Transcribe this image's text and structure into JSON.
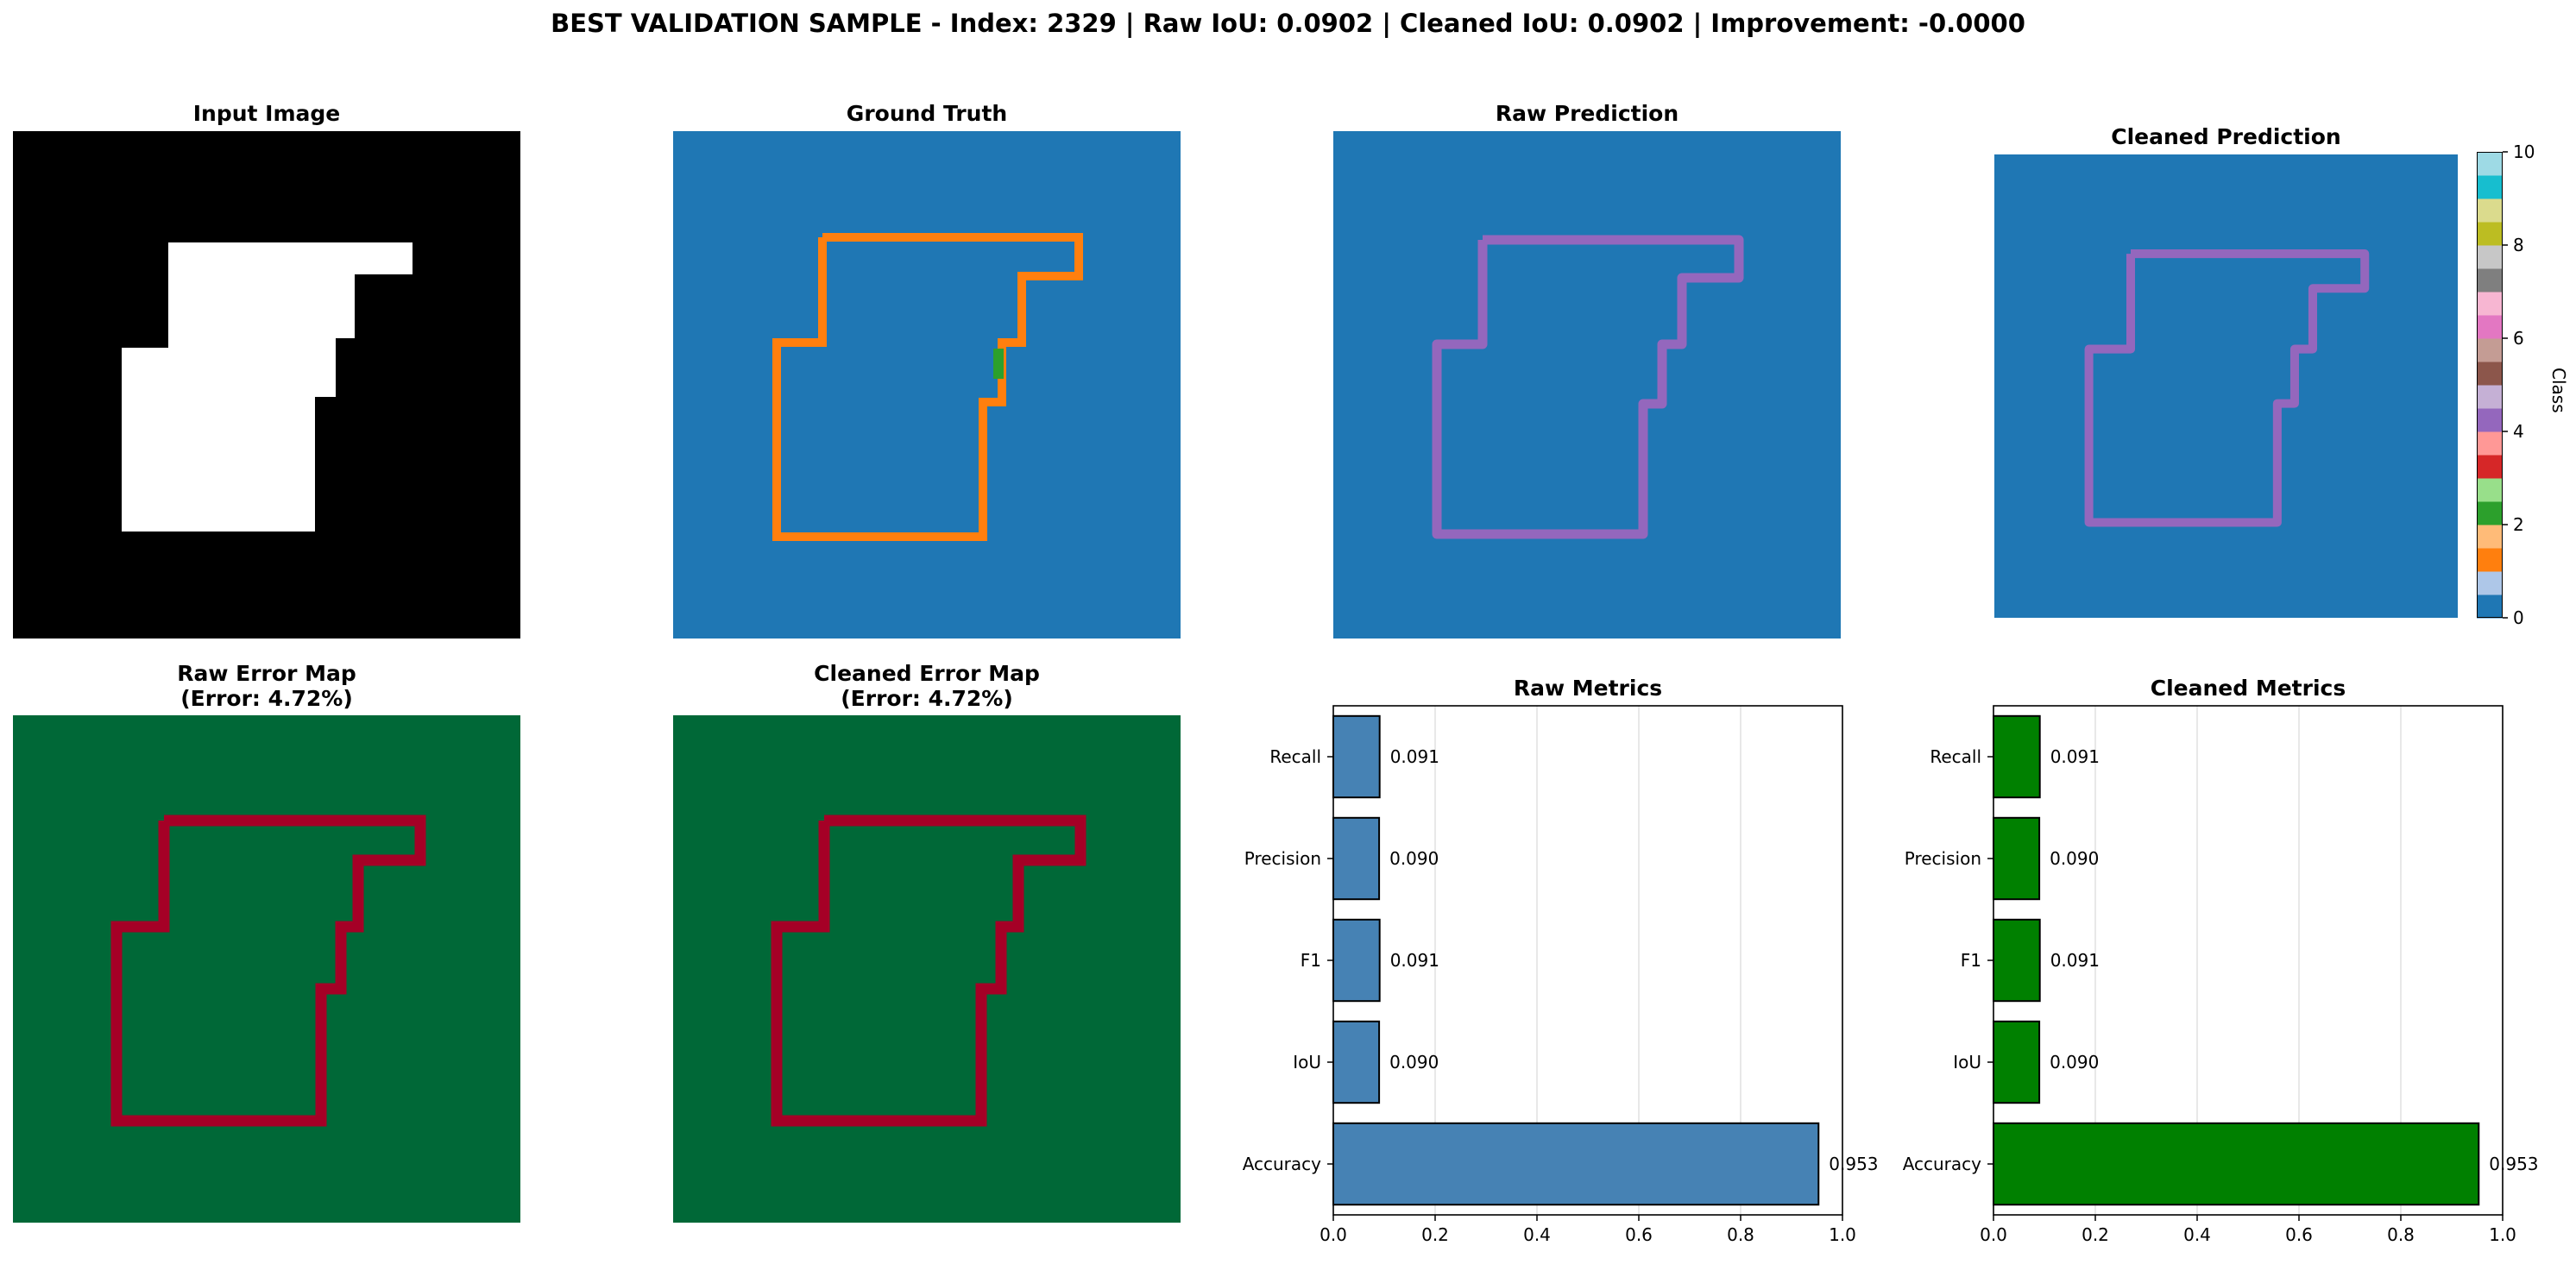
{
  "suptitle": "BEST VALIDATION SAMPLE - Index: 2329 | Raw IoU: 0.0902 | Cleaned IoU: 0.0902 | Improvement: -0.0000",
  "panels": {
    "input": {
      "title": "Input Image"
    },
    "ground_truth": {
      "title": "Ground Truth"
    },
    "raw_prediction": {
      "title": "Raw Prediction"
    },
    "cleaned_prediction": {
      "title": "Cleaned Prediction"
    },
    "raw_error": {
      "title_line1": "Raw Error Map",
      "title_line2": "(Error: 4.72%)"
    },
    "cleaned_error": {
      "title_line1": "Cleaned Error Map",
      "title_line2": "(Error: 4.72%)"
    }
  },
  "colorbar": {
    "label": "Class",
    "ticks": [
      "0",
      "2",
      "4",
      "6",
      "8",
      "10"
    ],
    "colors": [
      "#1f77b4",
      "#aec7e8",
      "#ff7f0e",
      "#ffbb78",
      "#2ca02c",
      "#98df8a",
      "#d62728",
      "#ff9896",
      "#9467bd",
      "#c5b0d5",
      "#8c564b",
      "#c49c94",
      "#e377c2",
      "#f7b6d2",
      "#7f7f7f",
      "#c7c7c7",
      "#bcbd22",
      "#dbdb8d",
      "#17becf",
      "#9edae5"
    ]
  },
  "chart_data": [
    {
      "type": "bar",
      "orientation": "horizontal",
      "title": "Raw Metrics",
      "categories": [
        "Accuracy",
        "IoU",
        "F1",
        "Precision",
        "Recall"
      ],
      "values": [
        0.953,
        0.09,
        0.091,
        0.09,
        0.091
      ],
      "value_labels": [
        "0.953",
        "0.090",
        "0.091",
        "0.090",
        "0.091"
      ],
      "xlim": [
        0,
        1.0
      ],
      "xticks": [
        "0.0",
        "0.2",
        "0.4",
        "0.6",
        "0.8",
        "1.0"
      ],
      "bar_color": "#4682b4",
      "grid": "x"
    },
    {
      "type": "bar",
      "orientation": "horizontal",
      "title": "Cleaned Metrics",
      "categories": [
        "Accuracy",
        "IoU",
        "F1",
        "Precision",
        "Recall"
      ],
      "values": [
        0.953,
        0.09,
        0.091,
        0.09,
        0.091
      ],
      "value_labels": [
        "0.953",
        "0.090",
        "0.091",
        "0.090",
        "0.091"
      ],
      "xlim": [
        0,
        1.0
      ],
      "xticks": [
        "0.0",
        "0.2",
        "0.4",
        "0.6",
        "0.8",
        "1.0"
      ],
      "bar_color": "#008000",
      "grid": "x"
    }
  ]
}
